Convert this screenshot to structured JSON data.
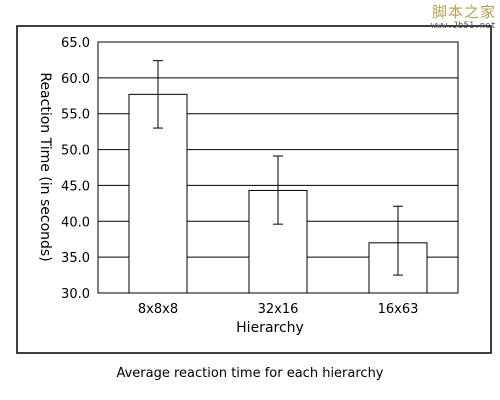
{
  "watermark": {
    "line1": "脚本之家",
    "line2": "www.Jb51.net"
  },
  "caption": "Average reaction time for each hierarchy",
  "chart_data": {
    "type": "bar",
    "categories": [
      "8x8x8",
      "32x16",
      "16x63"
    ],
    "values": [
      57.7,
      44.3,
      37.0
    ],
    "error_high": [
      62.4,
      49.1,
      42.1
    ],
    "error_low": [
      53.0,
      39.6,
      32.5
    ],
    "xlabel": "Hierarchy",
    "ylabel": "Reaction Time (in seconds)",
    "ylim": [
      30.0,
      65.0
    ],
    "yticks": [
      "30.0",
      "35.0",
      "40.0",
      "45.0",
      "50.0",
      "55.0",
      "60.0",
      "65.0"
    ],
    "grid": true,
    "bar_color": "#ffffff",
    "line_color": "#000000"
  }
}
